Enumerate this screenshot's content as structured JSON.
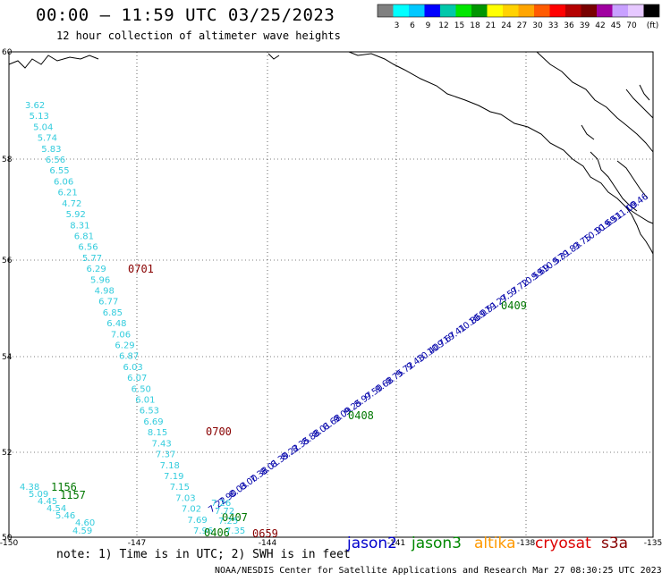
{
  "header": {
    "title": "00:00 – 11:59 UTC 03/25/2023",
    "subtitle": "12 hour collection of altimeter wave heights"
  },
  "colorbar": {
    "unit": "(ft)",
    "ticks": [
      "3",
      "6",
      "9",
      "12",
      "15",
      "18",
      "21",
      "24",
      "27",
      "30",
      "33",
      "36",
      "39",
      "42",
      "45",
      "70"
    ],
    "colors": [
      "#808080",
      "#00ffff",
      "#00c8ff",
      "#0000ff",
      "#00c8aa",
      "#00e600",
      "#009600",
      "#ffff00",
      "#ffd200",
      "#ffa500",
      "#ff5a00",
      "#ff0000",
      "#b40000",
      "#780000",
      "#a000a0",
      "#c8a0ff",
      "#e6c8ff",
      "#000000"
    ]
  },
  "map": {
    "lat_labels": [
      "60",
      "58",
      "56",
      "54",
      "52",
      "50"
    ],
    "lon_labels": [
      "-150",
      "-147",
      "-144",
      "-141",
      "-138",
      "-135"
    ],
    "tracks": {
      "track_a": {
        "color": "#33ccdd",
        "values": [
          "3.62",
          "5.13",
          "5.04",
          "5.74",
          "5.83",
          "6.56",
          "6.55",
          "6.06",
          "6.21",
          "4.72",
          "5.92",
          "8.31",
          "6.81",
          "6.56",
          "5.77",
          "6.29",
          "5.96",
          "4.98",
          "6.77",
          "6.85",
          "6.48",
          "7.06",
          "6.29",
          "6.87",
          "6.03",
          "6.07",
          "6.50",
          "6.01",
          "6.53",
          "6.69",
          "8.15",
          "7.43",
          "7.37",
          "7.18",
          "7.19",
          "7.15",
          "7.03",
          "7.02",
          "7.69",
          "7.96"
        ],
        "time": "0701",
        "time2": "0700"
      },
      "track_b": {
        "color": "#0000aa",
        "values": [
          "7.22",
          "7.90",
          "8.03",
          "8.00",
          "7.38",
          "8.01",
          "8.39",
          "8.22",
          "8.35",
          "8.88",
          "8.01",
          "8.68",
          "9.09",
          "9.25",
          "8.97",
          "9.50",
          "9.68",
          "9.75",
          "9.72",
          "9.43",
          "10.40",
          "10.71",
          "9.67",
          "9.41",
          "10.86",
          "10.07",
          "9.51",
          "9.27",
          "9.57",
          "9.72",
          "10.59",
          "9.69",
          "10.57",
          "9.31",
          "9.83",
          "9.75",
          "10.91",
          "10.69",
          "9.51",
          "11.09",
          "10.46"
        ],
        "time_start": "0408",
        "time_mid": "0409",
        "time_low": "0407",
        "time_bottom": "0406"
      },
      "track_c": {
        "color": "#33ccdd",
        "values": [
          "4.38",
          "5.09",
          "4.45",
          "4.54",
          "5.46",
          "4.60",
          "4.59"
        ],
        "time1": "1156",
        "time2": "1157"
      },
      "track_d": {
        "values": [
          "7.25",
          "7.72",
          "7.26",
          "7.35"
        ],
        "time": "0659"
      }
    }
  },
  "legend": {
    "jason2": "jason2",
    "jason3": "jason3",
    "altika": "altika",
    "cryosat": "cryosat",
    "s3a": "s3a",
    "jason2_color": "#0000cc",
    "jason3_color": "#008800",
    "altika_color": "#ff9900",
    "cryosat_color": "#dd0000",
    "s3a_color": "#880000"
  },
  "footer": {
    "note": "note: 1) Time is in UTC; 2) SWH is in feet",
    "credit": "NOAA/NESDIS Center for Satellite Applications and Research   Mar 27 08:30:25 UTC 2023"
  }
}
